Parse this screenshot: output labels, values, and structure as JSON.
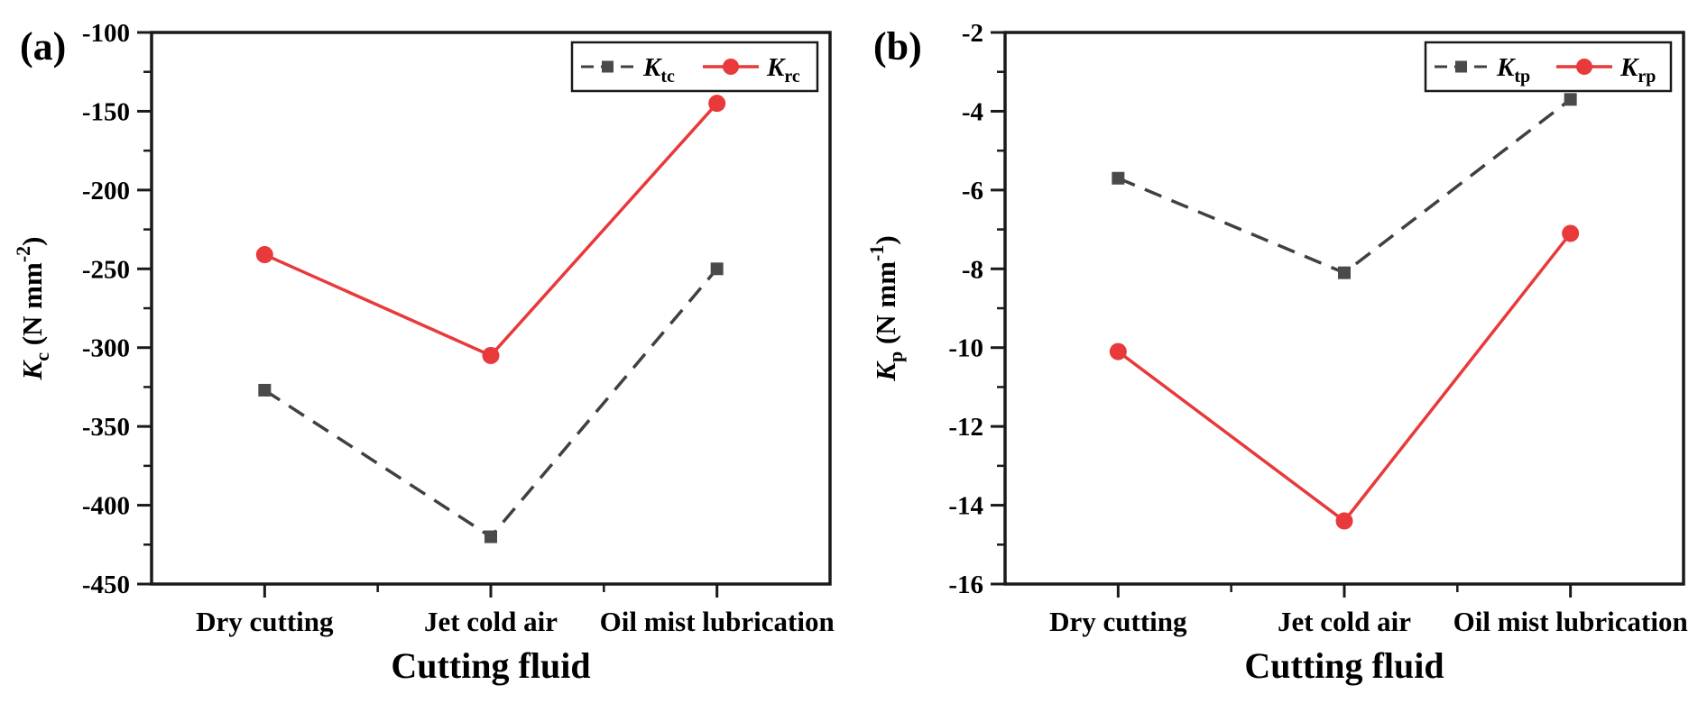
{
  "figure": {
    "background": "#ffffff",
    "xlabel": "Cutting fluid",
    "categories": [
      "Dry cutting",
      "Jet cold air",
      "Oil mist lubrication"
    ]
  },
  "chart_data": [
    {
      "type": "line",
      "panel_label": "(a)",
      "title": "",
      "xlabel": "Cutting fluid",
      "ylabel": {
        "main": "K",
        "sub": "c",
        "unit": " (N mm",
        "sup": "-2",
        "close": ")"
      },
      "categories": [
        "Dry cutting",
        "Jet cold air",
        "Oil mist lubrication"
      ],
      "series": [
        {
          "name": "Ktc",
          "legend_main": "K",
          "legend_sub": "tc",
          "values": [
            -327,
            -420,
            -250
          ],
          "color": "#404040",
          "marker": "square",
          "marker_color": "#4a4a4a",
          "line_style": "dashed"
        },
        {
          "name": "Krc",
          "legend_main": "K",
          "legend_sub": "rc",
          "values": [
            -241,
            -305,
            -145
          ],
          "color": "#e8393b",
          "marker": "circle",
          "marker_color": "#e8393b",
          "line_style": "solid"
        }
      ],
      "ylim": [
        -450,
        -100
      ],
      "ytick_step": 50,
      "yminor_step": 25,
      "grid": false,
      "legend_position": "top-right",
      "colors": {
        "frame": "#1a1a1a",
        "text": "#000000"
      }
    },
    {
      "type": "line",
      "panel_label": "(b)",
      "title": "",
      "xlabel": "Cutting fluid",
      "ylabel": {
        "main": "K",
        "sub": "p",
        "unit": " (N mm",
        "sup": "-1",
        "close": ")"
      },
      "categories": [
        "Dry cutting",
        "Jet cold air",
        "Oil mist lubrication"
      ],
      "series": [
        {
          "name": "Ktp",
          "legend_main": "K",
          "legend_sub": "tp",
          "values": [
            -5.7,
            -8.1,
            -3.7
          ],
          "color": "#404040",
          "marker": "square",
          "marker_color": "#4a4a4a",
          "line_style": "dashed"
        },
        {
          "name": "Krp",
          "legend_main": "K",
          "legend_sub": "rp",
          "values": [
            -10.1,
            -14.4,
            -7.1
          ],
          "color": "#e8393b",
          "marker": "circle",
          "marker_color": "#e8393b",
          "line_style": "solid"
        }
      ],
      "ylim": [
        -16,
        -2
      ],
      "ytick_step": 2,
      "yminor_step": 1,
      "grid": false,
      "legend_position": "top-right",
      "colors": {
        "frame": "#1a1a1a",
        "text": "#000000"
      }
    }
  ]
}
